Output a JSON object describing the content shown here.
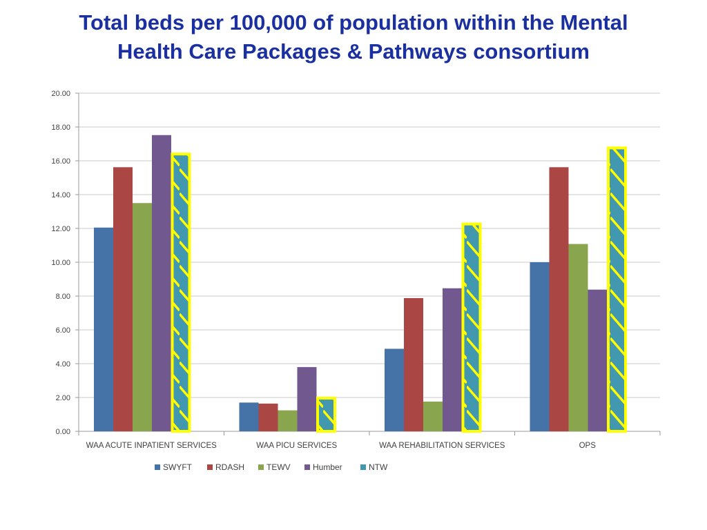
{
  "slide": {
    "title_line1": "Total beds per 100,000 of population within the Mental",
    "title_line2": "Health Care Packages & Pathways consortium"
  },
  "chart_data": {
    "type": "bar",
    "categories": [
      "WAA ACUTE INPATIENT SERVICES",
      "WAA PICU SERVICES",
      "WAA REHABILITATION SERVICES",
      "OPS"
    ],
    "series": [
      {
        "name": "SWYFT",
        "color": "#4572a7",
        "values": [
          12.05,
          1.7,
          4.88,
          10.0
        ]
      },
      {
        "name": "RDASH",
        "color": "#aa4643",
        "values": [
          15.62,
          1.64,
          7.88,
          15.62
        ]
      },
      {
        "name": "TEWV",
        "color": "#89a54e",
        "values": [
          13.5,
          1.24,
          1.76,
          11.08
        ]
      },
      {
        "name": "Humber",
        "color": "#71588f",
        "values": [
          17.52,
          3.8,
          8.46,
          8.38
        ]
      },
      {
        "name": "NTW",
        "color": "#4198af",
        "values": [
          16.4,
          1.96,
          12.26,
          16.76
        ],
        "highlighted": true,
        "highlight_color": "#ffff00"
      }
    ],
    "ylim": [
      0,
      20
    ],
    "yticks": [
      "0.00",
      "2.00",
      "4.00",
      "6.00",
      "8.00",
      "10.00",
      "12.00",
      "14.00",
      "16.00",
      "18.00",
      "20.00"
    ],
    "grid": true,
    "legend_position": "bottom",
    "xlabel": "",
    "ylabel": ""
  }
}
